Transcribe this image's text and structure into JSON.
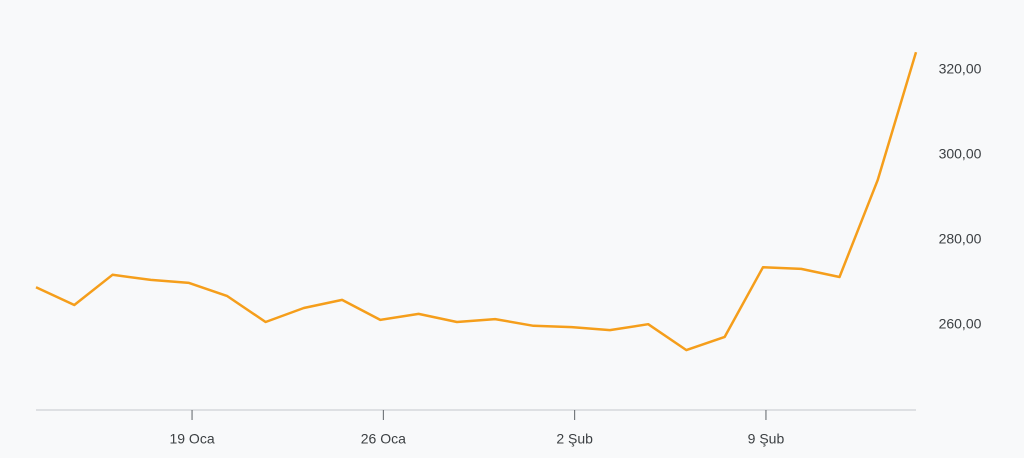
{
  "chart_data": {
    "type": "line",
    "color": "#f59e1b",
    "categories": [
      null,
      null,
      null,
      null,
      "19 Oca",
      null,
      null,
      null,
      null,
      "26 Oca",
      null,
      null,
      null,
      null,
      "2 Şub",
      null,
      null,
      null,
      null,
      "9 Şub",
      null,
      null,
      null,
      null
    ],
    "values": [
      268.9,
      264.7,
      271.8,
      270.6,
      269.9,
      266.8,
      260.7,
      264.0,
      265.9,
      261.2,
      262.6,
      260.7,
      261.4,
      259.8,
      259.5,
      258.8,
      260.2,
      254.1,
      257.2,
      273.6,
      273.2,
      271.3,
      294.1,
      324.2
    ],
    "ylim": [
      240,
      332
    ],
    "yticks": [
      {
        "value": 260,
        "label": "260,00"
      },
      {
        "value": 280,
        "label": "280,00"
      },
      {
        "value": 300,
        "label": "300,00"
      },
      {
        "value": 320,
        "label": "320,00"
      }
    ]
  }
}
